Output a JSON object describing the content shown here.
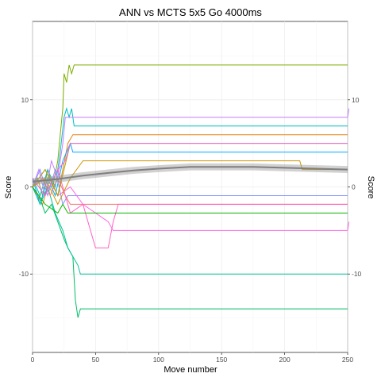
{
  "chart_data": {
    "type": "line",
    "title": "ANN vs MCTS 5x5 Go 4000ms",
    "xlabel": "Move number",
    "ylabel": "Score",
    "ylabel_right": "Score",
    "xlim": [
      0,
      250
    ],
    "ylim": [
      -19,
      19
    ],
    "x_ticks": [
      0,
      50,
      100,
      150,
      200,
      250
    ],
    "y_ticks": [
      -10,
      0,
      10
    ],
    "x_tick_labels": [
      "0",
      "50",
      "100",
      "150",
      "200",
      "250"
    ],
    "y_tick_labels": [
      "-10",
      "0",
      "10"
    ],
    "grid": true,
    "legend": "none",
    "series": [
      {
        "color": "#7CAE00",
        "points": [
          [
            0,
            0
          ],
          [
            4,
            1
          ],
          [
            8,
            -1
          ],
          [
            12,
            2
          ],
          [
            16,
            0
          ],
          [
            20,
            3
          ],
          [
            22,
            6
          ],
          [
            24,
            9
          ],
          [
            25,
            13
          ],
          [
            27,
            12
          ],
          [
            29,
            14
          ],
          [
            31,
            13
          ],
          [
            33,
            14
          ],
          [
            35,
            14
          ],
          [
            250,
            14
          ]
        ]
      },
      {
        "color": "#00BFC4",
        "points": [
          [
            0,
            1
          ],
          [
            6,
            -1
          ],
          [
            12,
            2
          ],
          [
            18,
            0
          ],
          [
            22,
            4
          ],
          [
            25,
            8
          ],
          [
            27,
            9
          ],
          [
            29,
            8
          ],
          [
            31,
            9
          ],
          [
            33,
            7
          ],
          [
            35,
            7
          ],
          [
            250,
            7
          ]
        ]
      },
      {
        "color": "#C77CFF",
        "points": [
          [
            0,
            0
          ],
          [
            5,
            2
          ],
          [
            10,
            -1
          ],
          [
            15,
            3
          ],
          [
            20,
            1
          ],
          [
            24,
            5
          ],
          [
            26,
            8
          ],
          [
            250,
            8
          ],
          [
            251,
            9
          ]
        ]
      },
      {
        "color": "#E68613",
        "points": [
          [
            0,
            0
          ],
          [
            8,
            -2
          ],
          [
            14,
            1
          ],
          [
            20,
            -1
          ],
          [
            24,
            2
          ],
          [
            28,
            5
          ],
          [
            32,
            6
          ],
          [
            250,
            6
          ]
        ]
      },
      {
        "color": "#00A9FF",
        "points": [
          [
            0,
            1
          ],
          [
            6,
            -2
          ],
          [
            12,
            1
          ],
          [
            18,
            -1
          ],
          [
            24,
            3
          ],
          [
            30,
            5
          ],
          [
            32,
            4
          ],
          [
            250,
            4
          ]
        ]
      },
      {
        "color": "#8494FF",
        "points": [
          [
            0,
            0
          ],
          [
            6,
            2
          ],
          [
            12,
            -1
          ],
          [
            18,
            2
          ],
          [
            24,
            -2
          ],
          [
            28,
            -1
          ],
          [
            250,
            -1
          ]
        ]
      },
      {
        "color": "#00BE67",
        "points": [
          [
            0,
            0
          ],
          [
            5,
            -1
          ],
          [
            10,
            -3
          ],
          [
            15,
            -2
          ],
          [
            20,
            -4
          ],
          [
            25,
            -6
          ],
          [
            28,
            -7
          ],
          [
            32,
            -8
          ],
          [
            34,
            -13
          ],
          [
            36,
            -15
          ],
          [
            38,
            -14
          ],
          [
            250,
            -14
          ]
        ]
      },
      {
        "color": "#00C19A",
        "points": [
          [
            0,
            0
          ],
          [
            6,
            -2
          ],
          [
            12,
            0
          ],
          [
            18,
            -3
          ],
          [
            24,
            -5
          ],
          [
            28,
            -7
          ],
          [
            32,
            -8
          ],
          [
            36,
            -9
          ],
          [
            38,
            -10
          ],
          [
            250,
            -10
          ]
        ]
      },
      {
        "color": "#F8766D",
        "points": [
          [
            0,
            0
          ],
          [
            8,
            1
          ],
          [
            14,
            -1
          ],
          [
            20,
            1
          ],
          [
            26,
            -1
          ],
          [
            30,
            -2
          ],
          [
            250,
            -2
          ]
        ]
      },
      {
        "color": "#FF61C3",
        "points": [
          [
            0,
            1
          ],
          [
            10,
            -1
          ],
          [
            20,
            2
          ],
          [
            30,
            -3
          ],
          [
            40,
            -2
          ],
          [
            46,
            -5
          ],
          [
            50,
            -7
          ],
          [
            60,
            -7
          ],
          [
            64,
            -4
          ],
          [
            68,
            -2
          ],
          [
            250,
            -2
          ]
        ]
      },
      {
        "color": "#FF66E4",
        "points": [
          [
            0,
            0
          ],
          [
            10,
            2
          ],
          [
            20,
            -1
          ],
          [
            30,
            0
          ],
          [
            40,
            -2
          ],
          [
            50,
            -3
          ],
          [
            60,
            -4
          ],
          [
            64,
            -5
          ],
          [
            250,
            -5
          ],
          [
            251,
            -4
          ]
        ]
      },
      {
        "color": "#CD9600",
        "points": [
          [
            0,
            0
          ],
          [
            10,
            1
          ],
          [
            20,
            -2
          ],
          [
            30,
            1
          ],
          [
            40,
            3
          ],
          [
            50,
            3
          ],
          [
            212,
            3
          ],
          [
            214,
            2
          ],
          [
            250,
            2
          ]
        ]
      },
      {
        "color": "#ABA300",
        "points": [
          [
            0,
            0
          ],
          [
            10,
            2
          ],
          [
            20,
            -1
          ],
          [
            30,
            5
          ],
          [
            250,
            5
          ]
        ]
      },
      {
        "color": "#0CB702",
        "points": [
          [
            0,
            0
          ],
          [
            10,
            -2
          ],
          [
            20,
            -3
          ],
          [
            24,
            -2
          ],
          [
            28,
            -3
          ],
          [
            250,
            -3
          ]
        ]
      },
      {
        "color": "#ED68ED",
        "points": [
          [
            0,
            1
          ],
          [
            10,
            -1
          ],
          [
            20,
            2
          ],
          [
            26,
            3
          ],
          [
            30,
            5
          ],
          [
            250,
            5
          ]
        ]
      },
      {
        "color": "#7F7F7F",
        "points": [
          [
            0,
            0.6
          ],
          [
            20,
            0.9
          ],
          [
            40,
            1.3
          ],
          [
            60,
            1.6
          ],
          [
            80,
            1.9
          ],
          [
            100,
            2.1
          ],
          [
            125,
            2.3
          ],
          [
            150,
            2.3
          ],
          [
            175,
            2.3
          ],
          [
            200,
            2.2
          ],
          [
            225,
            2.1
          ],
          [
            250,
            2.0
          ]
        ],
        "smooth": true,
        "ribbon": 0.4
      }
    ]
  }
}
